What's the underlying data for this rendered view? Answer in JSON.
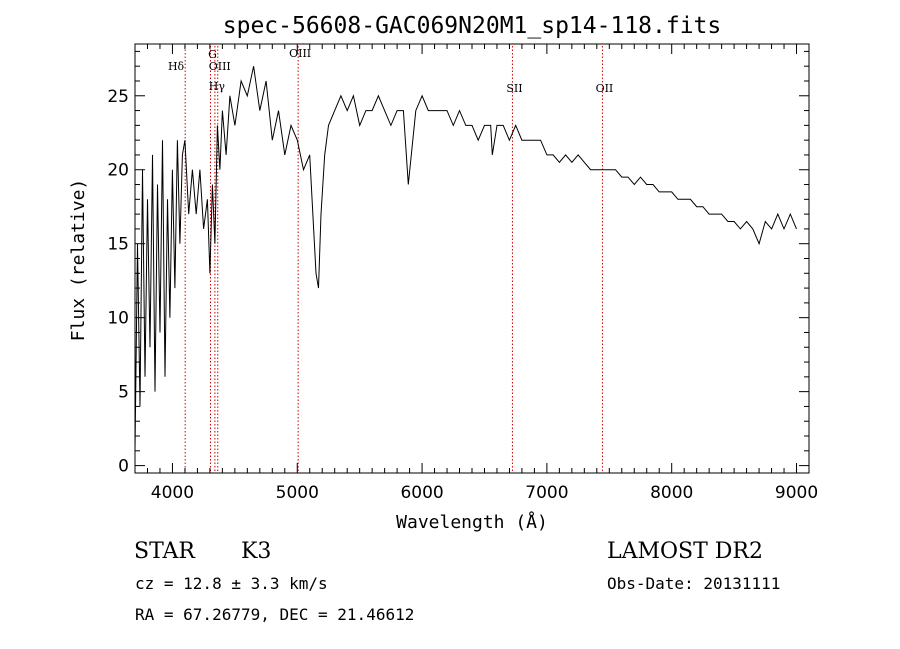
{
  "chart_data": {
    "type": "line",
    "title": "spec-56608-GAC069N20M1_sp14-118.fits",
    "xlabel": "Wavelength (Å)",
    "ylabel": "Flux (relative)",
    "xlim": [
      3700,
      9100
    ],
    "ylim": [
      -0.5,
      28.5
    ],
    "xticks": [
      4000,
      5000,
      6000,
      7000,
      8000,
      9000
    ],
    "yticks": [
      0,
      5,
      10,
      15,
      20,
      25
    ],
    "grid": false,
    "line_color": "#000000",
    "marker_color": "#cc0000",
    "series": [
      {
        "x": [
          3700,
          3720,
          3740,
          3760,
          3780,
          3800,
          3820,
          3840,
          3860,
          3880,
          3900,
          3920,
          3940,
          3960,
          3980,
          4000,
          4020,
          4040,
          4060,
          4080,
          4100,
          4130,
          4160,
          4190,
          4220,
          4250,
          4280,
          4300,
          4320,
          4340,
          4360,
          4380,
          4400,
          4430,
          4460,
          4500,
          4550,
          4600,
          4650,
          4700,
          4750,
          4800,
          4850,
          4900,
          4950,
          5000,
          5050,
          5100,
          5150,
          5170,
          5190,
          5220,
          5250,
          5300,
          5350,
          5400,
          5450,
          5500,
          5550,
          5600,
          5650,
          5700,
          5750,
          5800,
          5850,
          5890,
          5950,
          6000,
          6050,
          6100,
          6150,
          6200,
          6250,
          6300,
          6350,
          6400,
          6450,
          6500,
          6550,
          6563,
          6600,
          6650,
          6700,
          6750,
          6800,
          6850,
          6900,
          6950,
          7000,
          7050,
          7100,
          7150,
          7200,
          7250,
          7300,
          7350,
          7400,
          7450,
          7500,
          7550,
          7600,
          7650,
          7700,
          7750,
          7800,
          7850,
          7900,
          7950,
          8000,
          8050,
          8100,
          8150,
          8200,
          8250,
          8300,
          8350,
          8400,
          8450,
          8500,
          8550,
          8600,
          8650,
          8700,
          8750,
          8800,
          8850,
          8900,
          8950,
          9000
        ],
        "y": [
          1,
          15,
          4,
          20,
          6,
          18,
          8,
          21,
          5,
          19,
          9,
          22,
          6,
          18,
          10,
          20,
          12,
          22,
          15,
          21,
          22,
          17,
          20,
          17,
          20,
          16,
          18,
          13,
          19,
          15,
          23,
          20,
          24,
          21,
          25,
          23,
          26,
          25,
          27,
          24,
          26,
          22,
          24,
          21,
          23,
          22,
          20,
          21,
          13,
          12,
          17,
          21,
          23,
          24,
          25,
          24,
          25,
          23,
          24,
          24,
          25,
          24,
          23,
          24,
          24,
          19,
          24,
          25,
          24,
          24,
          24,
          24,
          23,
          24,
          23,
          23,
          22,
          23,
          23,
          21,
          23,
          23,
          22,
          23,
          22,
          22,
          22,
          22,
          21,
          21,
          20.5,
          21,
          20.5,
          21,
          20.5,
          20,
          20,
          20,
          20,
          20,
          19.5,
          19.5,
          19,
          19.5,
          19,
          19,
          18.5,
          18.5,
          18.5,
          18,
          18,
          18,
          17.5,
          17.5,
          17,
          17,
          17,
          16.5,
          16.5,
          16,
          16.5,
          16,
          15,
          16.5,
          16,
          17,
          16,
          17,
          16
        ]
      }
    ],
    "lines": [
      {
        "label": "Hδ",
        "x": 4102
      },
      {
        "label": "G",
        "x": 4305
      },
      {
        "label": "OIII",
        "x": 4363
      },
      {
        "label": "Hγ",
        "x": 4340
      },
      {
        "label": "OIII",
        "x": 5007
      },
      {
        "label": "SII",
        "x": 6724
      },
      {
        "label": "OII",
        "x": 7445
      }
    ]
  },
  "info": {
    "class": "STAR",
    "subclass": "K3",
    "survey": "LAMOST DR2",
    "cz": "cz = 12.8 ± 3.3 km/s",
    "obsdate": "Obs-Date: 20131111",
    "radec": "RA =  67.26779, DEC =  21.46612"
  }
}
